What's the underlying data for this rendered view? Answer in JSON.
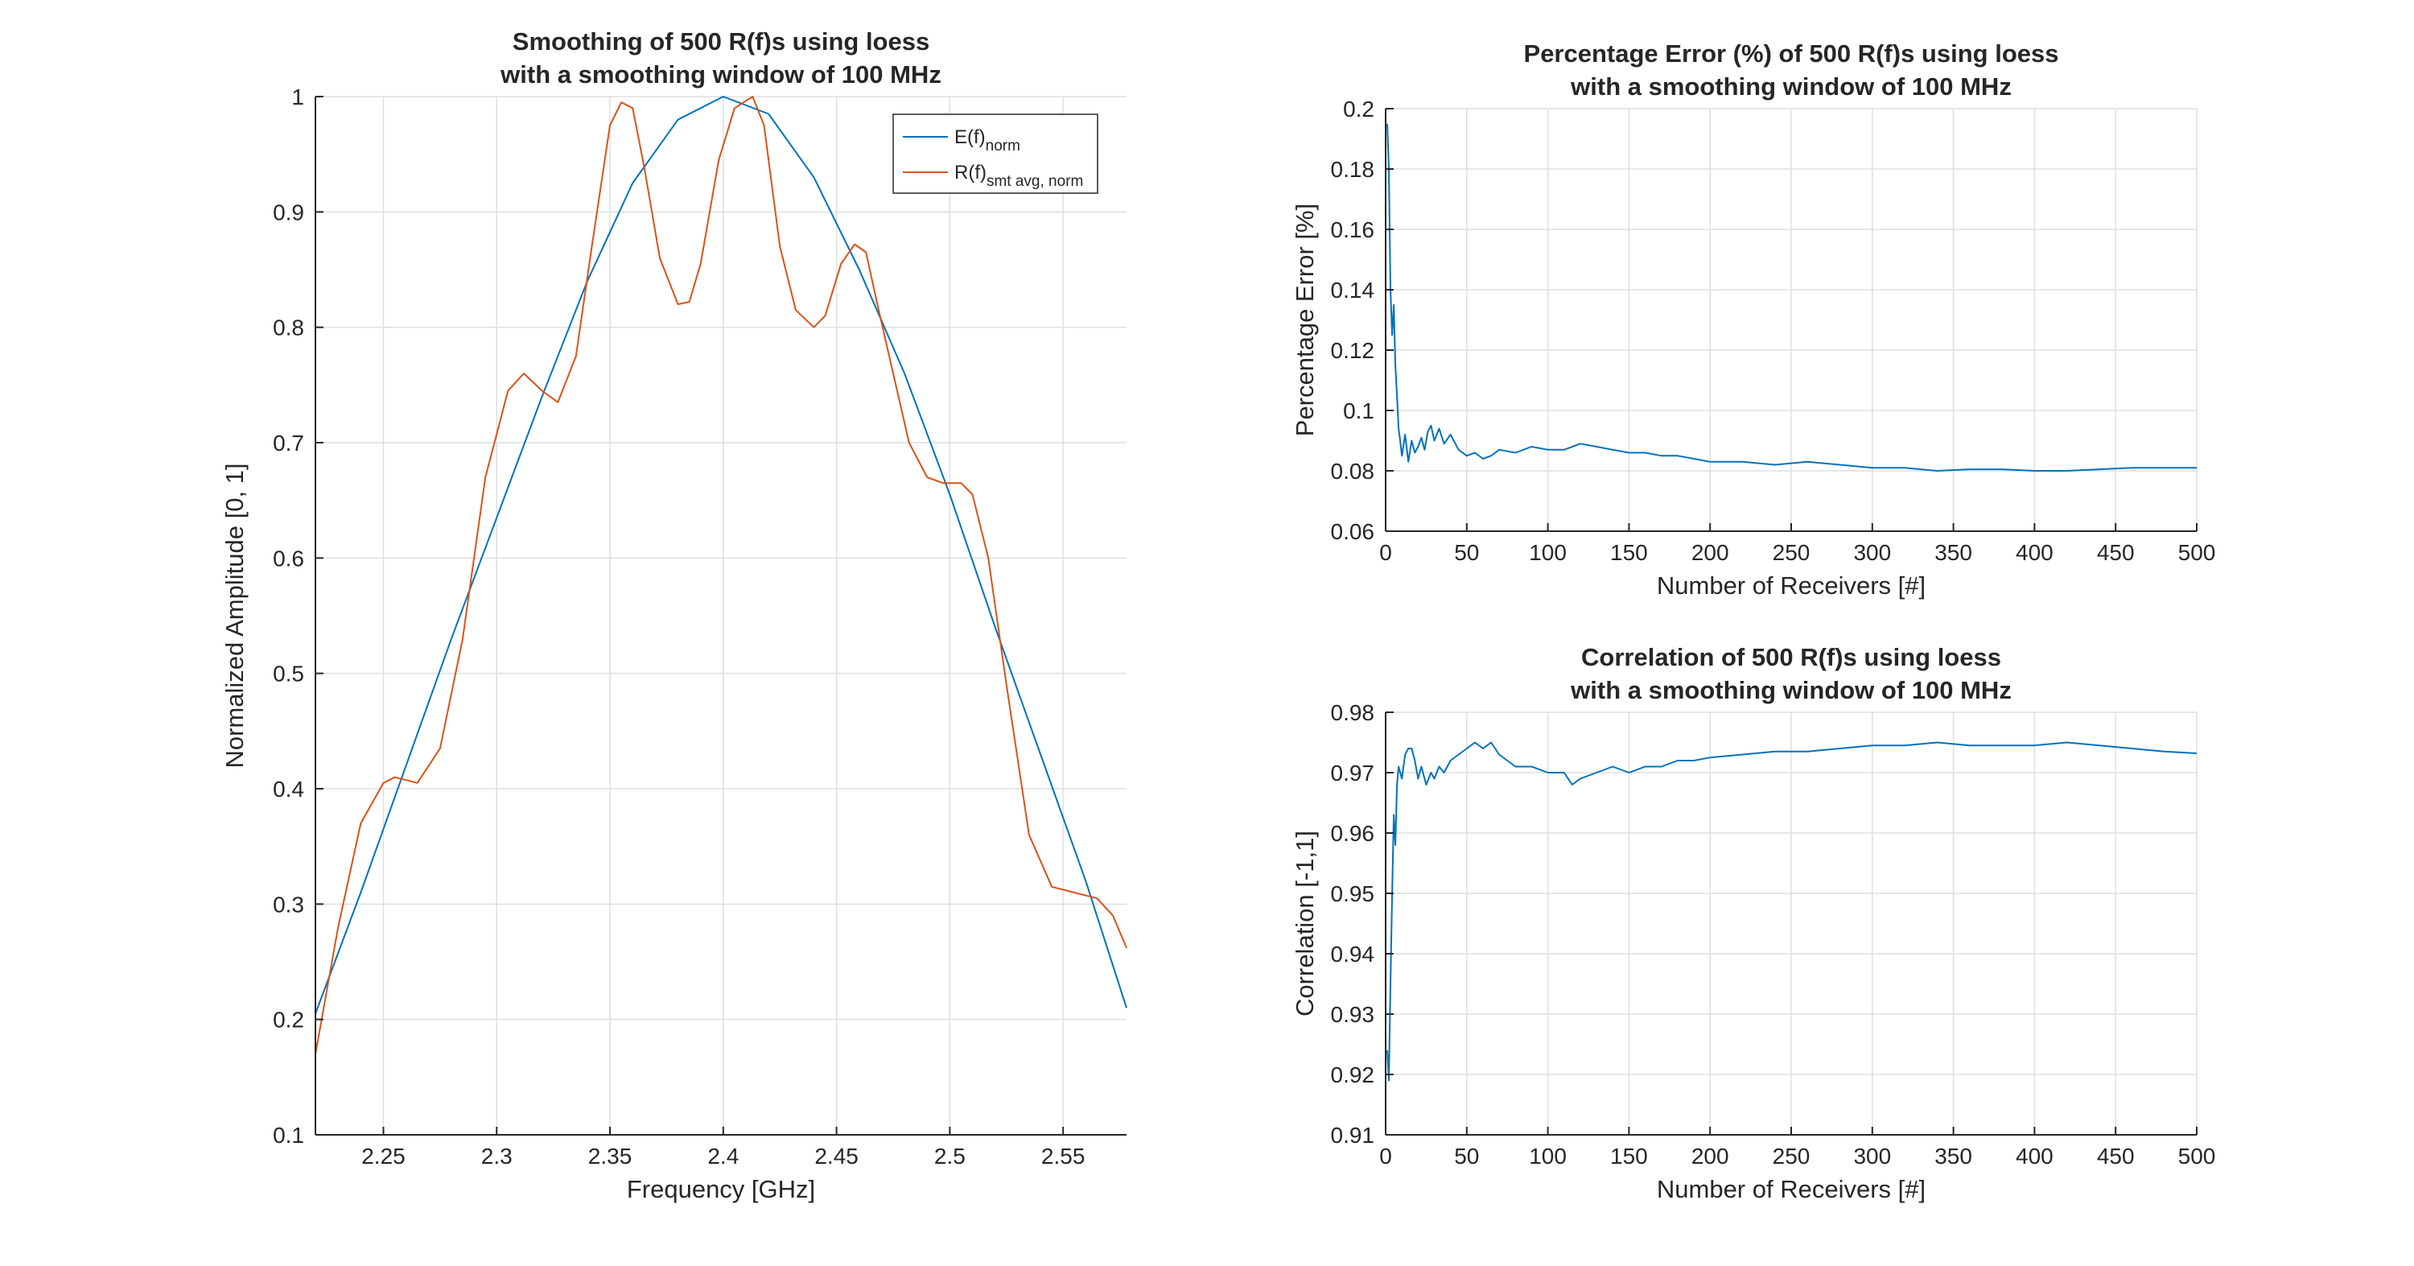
{
  "colors": {
    "blue": "#0072BD",
    "orange": "#D95319",
    "axis": "#262626",
    "grid": "#dfdfdf"
  },
  "chart_data": [
    {
      "id": "left",
      "type": "line",
      "title_lines": [
        "Smoothing of 500 R(f)s using loess",
        "with a smoothing window of 100 MHz"
      ],
      "xlabel": "Frequency [GHz]",
      "ylabel": "Normalized Amplitude [0, 1]",
      "xlim": [
        2.22,
        2.578
      ],
      "ylim": [
        0.1,
        1.0
      ],
      "xticks": [
        2.25,
        2.3,
        2.35,
        2.4,
        2.45,
        2.5,
        2.55
      ],
      "xtick_labels": [
        "2.25",
        "2.3",
        "2.35",
        "2.4",
        "2.45",
        "2.5",
        "2.55"
      ],
      "yticks": [
        0.1,
        0.2,
        0.3,
        0.4,
        0.5,
        0.6,
        0.7,
        0.8,
        0.9,
        1.0
      ],
      "ytick_labels": [
        "0.1",
        "0.2",
        "0.3",
        "0.4",
        "0.5",
        "0.6",
        "0.7",
        "0.8",
        "0.9",
        "1"
      ],
      "grid": true,
      "legend_position": "top-right",
      "series": [
        {
          "legend_main": "E(f)",
          "legend_sub": "norm",
          "color": "#0072BD",
          "x": [
            2.22,
            2.24,
            2.26,
            2.28,
            2.3,
            2.32,
            2.34,
            2.36,
            2.38,
            2.4,
            2.42,
            2.44,
            2.46,
            2.48,
            2.5,
            2.52,
            2.54,
            2.56,
            2.578
          ],
          "y": [
            0.205,
            0.31,
            0.42,
            0.53,
            0.635,
            0.74,
            0.84,
            0.925,
            0.98,
            1.0,
            0.985,
            0.93,
            0.85,
            0.76,
            0.655,
            0.54,
            0.43,
            0.32,
            0.21
          ]
        },
        {
          "legend_main": "R(f)",
          "legend_sub": "smt avg, norm",
          "color": "#D95319",
          "x": [
            2.22,
            2.23,
            2.24,
            2.25,
            2.255,
            2.265,
            2.275,
            2.285,
            2.295,
            2.305,
            2.312,
            2.32,
            2.327,
            2.335,
            2.342,
            2.35,
            2.355,
            2.36,
            2.365,
            2.372,
            2.38,
            2.385,
            2.39,
            2.398,
            2.405,
            2.413,
            2.418,
            2.425,
            2.432,
            2.44,
            2.445,
            2.452,
            2.458,
            2.463,
            2.468,
            2.475,
            2.482,
            2.49,
            2.497,
            2.505,
            2.51,
            2.517,
            2.525,
            2.535,
            2.545,
            2.555,
            2.565,
            2.572,
            2.578
          ],
          "y": [
            0.17,
            0.28,
            0.37,
            0.405,
            0.41,
            0.405,
            0.435,
            0.53,
            0.67,
            0.745,
            0.76,
            0.745,
            0.735,
            0.775,
            0.87,
            0.975,
            0.995,
            0.99,
            0.94,
            0.86,
            0.82,
            0.822,
            0.855,
            0.945,
            0.99,
            1.0,
            0.975,
            0.87,
            0.815,
            0.8,
            0.81,
            0.855,
            0.872,
            0.865,
            0.82,
            0.76,
            0.7,
            0.67,
            0.665,
            0.665,
            0.655,
            0.6,
            0.49,
            0.36,
            0.315,
            0.31,
            0.305,
            0.29,
            0.262
          ]
        }
      ]
    },
    {
      "id": "top-right",
      "type": "line",
      "title_lines": [
        "Percentage Error (%) of 500 R(f)s using loess",
        "with a smoothing window of 100 MHz"
      ],
      "xlabel": "Number of Receivers [#]",
      "ylabel": "Percentage Error [%]",
      "xlim": [
        0,
        500
      ],
      "ylim": [
        0.06,
        0.2
      ],
      "xticks": [
        0,
        50,
        100,
        150,
        200,
        250,
        300,
        350,
        400,
        450,
        500
      ],
      "xtick_labels": [
        "0",
        "50",
        "100",
        "150",
        "200",
        "250",
        "300",
        "350",
        "400",
        "450",
        "500"
      ],
      "yticks": [
        0.06,
        0.08,
        0.1,
        0.12,
        0.14,
        0.16,
        0.18,
        0.2
      ],
      "ytick_labels": [
        "0.06",
        "0.08",
        "0.1",
        "0.12",
        "0.14",
        "0.16",
        "0.18",
        "0.2"
      ],
      "grid": true,
      "series": [
        {
          "color": "#0072BD",
          "x": [
            1,
            2,
            3,
            4,
            5,
            6,
            7,
            8,
            9,
            10,
            12,
            14,
            16,
            18,
            20,
            22,
            24,
            26,
            28,
            30,
            33,
            36,
            40,
            45,
            50,
            55,
            60,
            65,
            70,
            80,
            90,
            100,
            110,
            120,
            130,
            140,
            150,
            160,
            170,
            180,
            190,
            200,
            220,
            240,
            260,
            280,
            300,
            320,
            340,
            360,
            380,
            400,
            420,
            440,
            460,
            480,
            500
          ],
          "y": [
            0.195,
            0.18,
            0.14,
            0.125,
            0.135,
            0.115,
            0.105,
            0.094,
            0.09,
            0.085,
            0.092,
            0.083,
            0.09,
            0.086,
            0.088,
            0.091,
            0.087,
            0.093,
            0.095,
            0.09,
            0.094,
            0.089,
            0.092,
            0.087,
            0.085,
            0.086,
            0.084,
            0.085,
            0.087,
            0.086,
            0.088,
            0.087,
            0.087,
            0.089,
            0.088,
            0.087,
            0.086,
            0.086,
            0.085,
            0.085,
            0.084,
            0.083,
            0.083,
            0.082,
            0.083,
            0.082,
            0.081,
            0.081,
            0.08,
            0.0805,
            0.0805,
            0.08,
            0.08,
            0.0805,
            0.081,
            0.081,
            0.081
          ]
        }
      ]
    },
    {
      "id": "bottom-right",
      "type": "line",
      "title_lines": [
        "Correlation of 500 R(f)s using loess",
        "with a smoothing window of 100 MHz"
      ],
      "xlabel": "Number of Receivers [#]",
      "ylabel": "Correlation [-1,1]",
      "xlim": [
        0,
        500
      ],
      "ylim": [
        0.91,
        0.98
      ],
      "xticks": [
        0,
        50,
        100,
        150,
        200,
        250,
        300,
        350,
        400,
        450,
        500
      ],
      "xtick_labels": [
        "0",
        "50",
        "100",
        "150",
        "200",
        "250",
        "300",
        "350",
        "400",
        "450",
        "500"
      ],
      "yticks": [
        0.91,
        0.92,
        0.93,
        0.94,
        0.95,
        0.96,
        0.97,
        0.98
      ],
      "ytick_labels": [
        "0.91",
        "0.92",
        "0.93",
        "0.94",
        "0.95",
        "0.96",
        "0.97",
        "0.98"
      ],
      "grid": true,
      "series": [
        {
          "color": "#0072BD",
          "x": [
            1,
            2,
            3,
            4,
            5,
            6,
            7,
            8,
            10,
            12,
            14,
            16,
            18,
            20,
            22,
            25,
            28,
            30,
            33,
            36,
            40,
            45,
            50,
            55,
            60,
            65,
            70,
            75,
            80,
            90,
            100,
            110,
            115,
            120,
            130,
            140,
            150,
            160,
            170,
            180,
            190,
            200,
            220,
            240,
            260,
            280,
            300,
            320,
            340,
            360,
            380,
            400,
            420,
            440,
            460,
            480,
            500
          ],
          "y": [
            0.924,
            0.919,
            0.935,
            0.95,
            0.963,
            0.958,
            0.968,
            0.971,
            0.969,
            0.973,
            0.974,
            0.974,
            0.972,
            0.969,
            0.971,
            0.968,
            0.97,
            0.969,
            0.971,
            0.97,
            0.972,
            0.973,
            0.974,
            0.975,
            0.974,
            0.975,
            0.973,
            0.972,
            0.971,
            0.971,
            0.97,
            0.97,
            0.968,
            0.969,
            0.97,
            0.971,
            0.97,
            0.971,
            0.971,
            0.972,
            0.972,
            0.9725,
            0.973,
            0.9735,
            0.9735,
            0.974,
            0.9745,
            0.9745,
            0.975,
            0.9745,
            0.9745,
            0.9745,
            0.975,
            0.9745,
            0.974,
            0.9735,
            0.9732
          ]
        }
      ]
    }
  ]
}
